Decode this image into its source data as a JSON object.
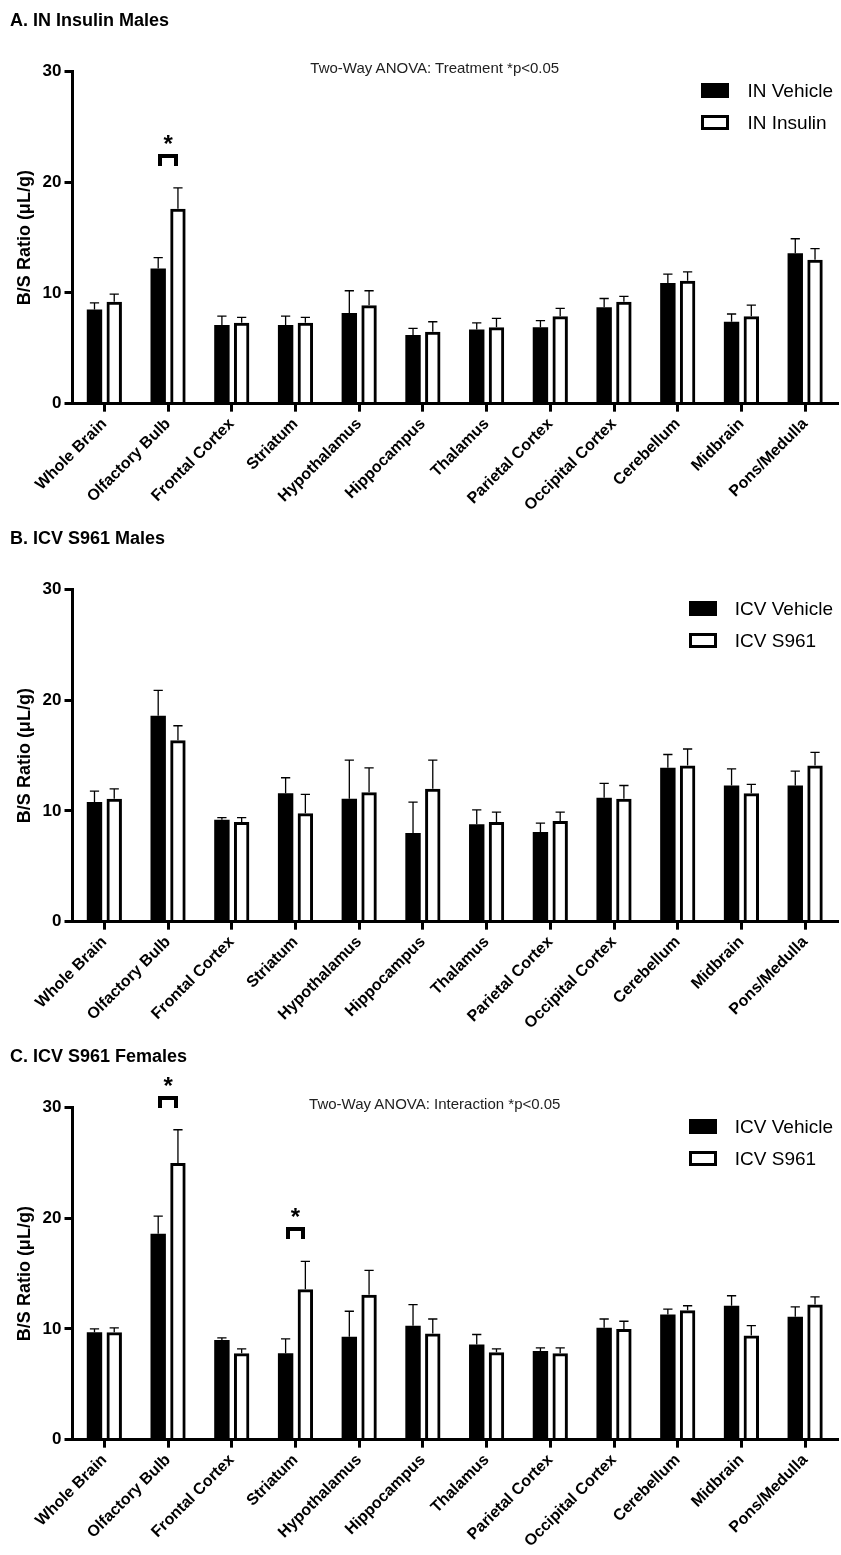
{
  "chart_data": [
    {
      "type": "bar",
      "title": "A. IN Insulin Males",
      "ylabel": "B/S Ratio (μL/g)",
      "categories": [
        "Whole Brain",
        "Olfactory Bulb",
        "Frontal Cortex",
        "Striatum",
        "Hypothalamus",
        "Hippocampus",
        "Thalamus",
        "Parietal Cortex",
        "Occipital Cortex",
        "Cerebellum",
        "Midbrain",
        "Pons/Medulla"
      ],
      "series": [
        {
          "name": "IN Vehicle",
          "color": "#000000",
          "values": [
            8.5,
            12.2,
            7.1,
            7.1,
            8.2,
            6.2,
            6.7,
            6.9,
            8.7,
            10.9,
            7.4,
            13.6
          ],
          "errors": [
            0.6,
            1.0,
            0.8,
            0.8,
            2.0,
            0.6,
            0.6,
            0.6,
            0.8,
            0.8,
            0.7,
            1.3
          ]
        },
        {
          "name": "IN Insulin",
          "color": "#000000",
          "values": [
            9.2,
            17.6,
            7.3,
            7.3,
            8.9,
            6.5,
            6.9,
            7.9,
            9.2,
            11.1,
            7.9,
            13.0
          ],
          "errors": [
            0.7,
            1.9,
            0.5,
            0.5,
            1.3,
            0.9,
            0.8,
            0.7,
            0.5,
            0.8,
            1.0,
            1.0
          ]
        }
      ],
      "ylim": [
        0,
        30
      ],
      "yticks": [
        0,
        10,
        20,
        30
      ],
      "legend": "top right",
      "annotations": [
        "Two-Way ANOVA: Treatment *p<0.05",
        {
          "text": "*",
          "x": "Olfactory Bulb",
          "y": 17.6
        }
      ]
    },
    {
      "type": "bar",
      "title": "B. ICV S961 Males",
      "ylabel": "B/S Ratio (μL/g)",
      "categories": [
        "Whole Brain",
        "Olfactory Bulb",
        "Frontal Cortex",
        "Striatum",
        "Hypothalamus",
        "Hippocampus",
        "Thalamus",
        "Parietal Cortex",
        "Occipital Cortex",
        "Cerebellum",
        "Midbrain",
        "Pons/Medulla"
      ],
      "series": [
        {
          "name": "ICV Vehicle",
          "color": "#000000",
          "values": [
            10.8,
            18.6,
            9.2,
            11.6,
            11.1,
            8.0,
            8.8,
            8.1,
            11.2,
            13.9,
            12.3,
            12.3
          ],
          "errors": [
            1.0,
            2.3,
            0.2,
            1.4,
            3.5,
            2.8,
            1.3,
            0.8,
            1.3,
            1.2,
            1.5,
            1.3
          ]
        },
        {
          "name": "ICV S961",
          "color": "#000000",
          "values": [
            11.1,
            16.4,
            9.0,
            9.8,
            11.7,
            12.0,
            9.0,
            9.1,
            11.1,
            14.1,
            11.6,
            14.1
          ],
          "errors": [
            0.9,
            1.3,
            0.4,
            1.7,
            2.2,
            2.6,
            0.9,
            0.8,
            1.2,
            1.5,
            0.8,
            1.2
          ]
        }
      ],
      "ylim": [
        0,
        30
      ],
      "yticks": [
        0,
        10,
        20,
        30
      ],
      "legend": "top right"
    },
    {
      "type": "bar",
      "title": "C. ICV S961 Females",
      "ylabel": "B/S Ratio (μL/g)",
      "categories": [
        "Whole Brain",
        "Olfactory Bulb",
        "Frontal Cortex",
        "Striatum",
        "Hypothalamus",
        "Hippocampus",
        "Thalamus",
        "Parietal Cortex",
        "Occipital Cortex",
        "Cerebellum",
        "Midbrain",
        "Pons/Medulla"
      ],
      "series": [
        {
          "name": "ICV Vehicle",
          "color": "#000000",
          "values": [
            9.7,
            18.6,
            9.0,
            7.8,
            9.3,
            10.3,
            8.6,
            8.0,
            10.1,
            11.3,
            12.1,
            11.1
          ],
          "errors": [
            0.3,
            1.6,
            0.2,
            1.3,
            2.3,
            1.9,
            0.9,
            0.3,
            0.8,
            0.5,
            0.9,
            0.9
          ]
        },
        {
          "name": "ICV S961",
          "color": "#000000",
          "values": [
            9.7,
            25.0,
            7.8,
            13.6,
            13.1,
            9.6,
            7.9,
            7.8,
            10.0,
            11.7,
            9.4,
            12.2
          ],
          "errors": [
            0.4,
            3.0,
            0.4,
            2.5,
            2.2,
            1.3,
            0.3,
            0.5,
            0.7,
            0.4,
            0.9,
            0.7
          ]
        }
      ],
      "ylim": [
        0,
        30
      ],
      "yticks": [
        0,
        10,
        20,
        30
      ],
      "legend": "top right",
      "annotations": [
        "Two-Way ANOVA: Interaction *p<0.05",
        {
          "text": "*",
          "x": "Olfactory Bulb",
          "y": 25.0
        },
        {
          "text": "*",
          "x": "Striatum",
          "y": 13.6
        }
      ]
    }
  ]
}
